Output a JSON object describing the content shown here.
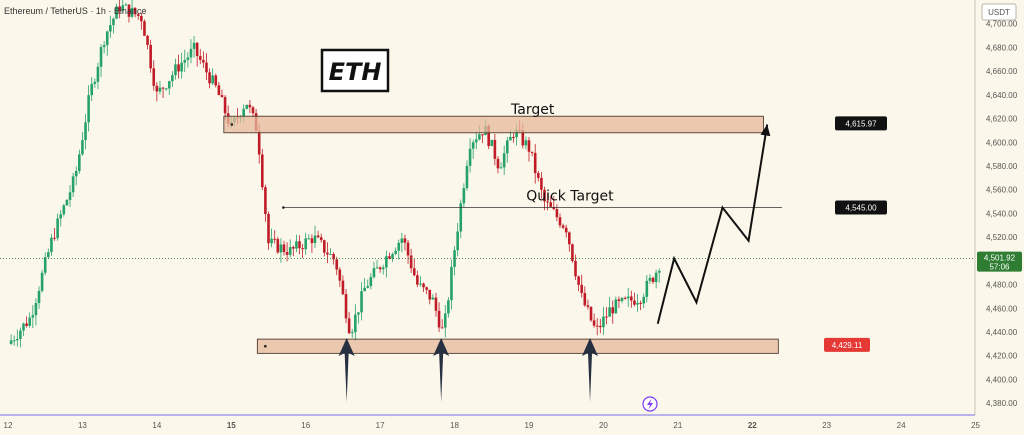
{
  "header": {
    "symbol": "Ethereum / TetherUS · 1h · Binance"
  },
  "currency_label": "USDT",
  "chart_title": "ETH",
  "colors": {
    "up": "#26a269",
    "down": "#c01c28",
    "zone": "#e6b89a",
    "background": "#fbf7ea",
    "target_tag": "#111111",
    "support_tag": "#e53935",
    "current_tag": "#2e7d32"
  },
  "chart_data": {
    "type": "candlestick",
    "ylim": [
      4370,
      4720
    ],
    "y_ticks": [
      4380,
      4400,
      4420,
      4440,
      4460,
      4480,
      4500,
      4520,
      4540,
      4560,
      4580,
      4600,
      4620,
      4640,
      4660,
      4680,
      4700
    ],
    "x_ticks": [
      "12",
      "13",
      "14",
      "15",
      "16",
      "17",
      "18",
      "19",
      "20",
      "21",
      "22",
      "23",
      "24",
      "25"
    ],
    "x_range": [
      12,
      25.1
    ],
    "price_path": [
      [
        12.0,
        4430
      ],
      [
        12.3,
        4452
      ],
      [
        12.6,
        4520
      ],
      [
        12.9,
        4570
      ],
      [
        13.1,
        4640
      ],
      [
        13.3,
        4690
      ],
      [
        13.5,
        4715
      ],
      [
        13.8,
        4705
      ],
      [
        14.0,
        4640
      ],
      [
        14.3,
        4665
      ],
      [
        14.5,
        4678
      ],
      [
        14.8,
        4645
      ],
      [
        15.0,
        4612
      ],
      [
        15.2,
        4635
      ],
      [
        15.35,
        4610
      ],
      [
        15.5,
        4515
      ],
      [
        15.8,
        4508
      ],
      [
        16.1,
        4520
      ],
      [
        16.4,
        4500
      ],
      [
        16.6,
        4440
      ],
      [
        16.8,
        4478
      ],
      [
        17.1,
        4505
      ],
      [
        17.3,
        4520
      ],
      [
        17.5,
        4480
      ],
      [
        17.7,
        4468
      ],
      [
        17.85,
        4438
      ],
      [
        18.0,
        4510
      ],
      [
        18.2,
        4600
      ],
      [
        18.4,
        4612
      ],
      [
        18.6,
        4580
      ],
      [
        18.8,
        4610
      ],
      [
        19.0,
        4595
      ],
      [
        19.2,
        4550
      ],
      [
        19.5,
        4528
      ],
      [
        19.7,
        4470
      ],
      [
        19.9,
        4440
      ],
      [
        20.1,
        4460
      ],
      [
        20.3,
        4465
      ],
      [
        20.5,
        4470
      ],
      [
        20.7,
        4490
      ],
      [
        20.78,
        4502
      ]
    ],
    "zones": [
      {
        "name": "target-zone",
        "y_low": 4608,
        "y_high": 4622,
        "x_start": 14.9,
        "x_end": 22.15
      },
      {
        "name": "support-zone",
        "y_low": 4422,
        "y_high": 4434,
        "x_start": 15.35,
        "x_end": 22.35
      }
    ],
    "lines": [
      {
        "name": "quick-target-line",
        "y": 4545.0,
        "x_start": 15.7,
        "x_end": 22.4
      }
    ],
    "price_tags": [
      {
        "name": "target-price",
        "value": "4,615.97",
        "y": 4615.97
      },
      {
        "name": "quick-target-price",
        "value": "4,545.00",
        "y": 4545.0
      },
      {
        "name": "support-price",
        "value": "4,429.11",
        "y": 4429.11
      },
      {
        "name": "current-price",
        "value": "4,501.92",
        "countdown": "57:06",
        "y": 4501.92
      }
    ],
    "annotations": [
      {
        "name": "target-label",
        "text": "Target",
        "x": 19.05,
        "y": 4624
      },
      {
        "name": "quick-target-label",
        "text": "Quick Target",
        "x": 19.55,
        "y": 4551
      }
    ],
    "projection_path": [
      [
        20.73,
        4447
      ],
      [
        20.95,
        4502
      ],
      [
        21.25,
        4465
      ],
      [
        21.6,
        4545
      ],
      [
        21.95,
        4517
      ],
      [
        22.2,
        4615
      ]
    ],
    "support_arrows": [
      16.55,
      17.82,
      19.82
    ]
  }
}
